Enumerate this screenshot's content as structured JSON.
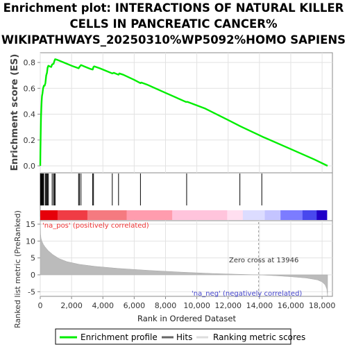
{
  "title_lines": [
    "Enrichment plot: INTERACTIONS OF NATURAL KILLER",
    "CELLS IN PANCREATIC CANCER%",
    "WIKIPATHWAYS_20250310%WP5092%HOMO SAPIENS"
  ],
  "chart_data": [
    {
      "type": "line",
      "panel": "enrichment-profile",
      "ylabel": "Enrichment score (ES)",
      "xlim": [
        0,
        18400
      ],
      "ylim": [
        0,
        0.85
      ],
      "yticks": [
        0.0,
        0.2,
        0.4,
        0.6,
        0.8
      ],
      "ytick_labels": [
        "0.0",
        "0.2",
        "0.4",
        "0.6",
        "0.8"
      ],
      "grid": true,
      "series": [
        {
          "name": "Enrichment profile",
          "color": "#00ee00",
          "points": [
            [
              0,
              0.0
            ],
            [
              10,
              0.1
            ],
            [
              20,
              0.2
            ],
            [
              35,
              0.3
            ],
            [
              50,
              0.38
            ],
            [
              70,
              0.45
            ],
            [
              90,
              0.5
            ],
            [
              110,
              0.54
            ],
            [
              140,
              0.56
            ],
            [
              180,
              0.6
            ],
            [
              230,
              0.62
            ],
            [
              280,
              0.62
            ],
            [
              330,
              0.64
            ],
            [
              380,
              0.7
            ],
            [
              430,
              0.72
            ],
            [
              470,
              0.76
            ],
            [
              520,
              0.775
            ],
            [
              600,
              0.77
            ],
            [
              700,
              0.765
            ],
            [
              760,
              0.785
            ],
            [
              850,
              0.79
            ],
            [
              900,
              0.81
            ],
            [
              950,
              0.825
            ],
            [
              1100,
              0.82
            ],
            [
              1500,
              0.8
            ],
            [
              2000,
              0.775
            ],
            [
              2450,
              0.755
            ],
            [
              2500,
              0.765
            ],
            [
              2600,
              0.78
            ],
            [
              2800,
              0.77
            ],
            [
              3200,
              0.75
            ],
            [
              3350,
              0.745
            ],
            [
              3400,
              0.765
            ],
            [
              3450,
              0.77
            ],
            [
              3800,
              0.755
            ],
            [
              4300,
              0.73
            ],
            [
              4600,
              0.715
            ],
            [
              4700,
              0.72
            ],
            [
              4900,
              0.71
            ],
            [
              5000,
              0.705
            ],
            [
              5050,
              0.715
            ],
            [
              5300,
              0.705
            ],
            [
              6000,
              0.665
            ],
            [
              6400,
              0.64
            ],
            [
              6450,
              0.645
            ],
            [
              6800,
              0.63
            ],
            [
              8000,
              0.565
            ],
            [
              9300,
              0.495
            ],
            [
              9400,
              0.495
            ],
            [
              10500,
              0.445
            ],
            [
              12000,
              0.355
            ],
            [
              12800,
              0.305
            ],
            [
              14200,
              0.225
            ],
            [
              16000,
              0.13
            ],
            [
              17500,
              0.05
            ],
            [
              18350,
              0.0
            ]
          ]
        }
      ]
    },
    {
      "type": "scatter",
      "panel": "hits",
      "series": [
        {
          "name": "Hits",
          "color": "#000000",
          "x": [
            15,
            35,
            50,
            70,
            90,
            110,
            150,
            180,
            230,
            330,
            380,
            430,
            470,
            520,
            760,
            850,
            900,
            950,
            2450,
            2500,
            2600,
            3350,
            3400,
            4600,
            5000,
            6400,
            9350,
            12750,
            14150
          ]
        }
      ]
    },
    {
      "type": "heatmap",
      "panel": "ranking-color-bar",
      "colors": [
        "#e6000a",
        "#f03c45",
        "#f57a80",
        "#ff9cae",
        "#ffc4dc",
        "#ffdff0",
        "#dcdcff",
        "#c4c4ff",
        "#7c7cff",
        "#4848ee",
        "#2000c8"
      ]
    },
    {
      "type": "area",
      "panel": "ranked-list-metric",
      "xlabel": "Rank in Ordered Dataset",
      "ylabel": "Ranked list metric (PreRanked)",
      "xlim": [
        0,
        18400
      ],
      "ylim": [
        -6.8,
        17.5
      ],
      "yticks": [
        -5,
        0,
        5,
        10,
        15
      ],
      "ytick_labels": [
        "-5",
        "0",
        "5",
        "10",
        "15"
      ],
      "xticks": [
        0,
        2000,
        4000,
        6000,
        8000,
        10000,
        12000,
        14000,
        16000,
        18000
      ],
      "xtick_labels": [
        "0",
        "2,000",
        "4,000",
        "6,000",
        "8,000",
        "10,000",
        "12,000",
        "14,000",
        "16,000",
        "18,000"
      ],
      "grid": true,
      "series": [
        {
          "name": "Ranking metric scores",
          "color": "#bbbbbb",
          "points": [
            [
              0,
              17.2
            ],
            [
              20,
              12.0
            ],
            [
              50,
              10.8
            ],
            [
              100,
              10.0
            ],
            [
              200,
              9.0
            ],
            [
              300,
              8.3
            ],
            [
              500,
              7.2
            ],
            [
              800,
              6.0
            ],
            [
              1200,
              4.8
            ],
            [
              1700,
              3.9
            ],
            [
              2500,
              3.1
            ],
            [
              3500,
              2.5
            ],
            [
              5000,
              1.9
            ],
            [
              7000,
              1.3
            ],
            [
              9000,
              0.8
            ],
            [
              11000,
              0.4
            ],
            [
              12500,
              0.18
            ],
            [
              13946,
              0.0
            ],
            [
              15000,
              -0.25
            ],
            [
              16000,
              -0.55
            ],
            [
              17000,
              -0.95
            ],
            [
              17700,
              -1.5
            ],
            [
              18000,
              -2.1
            ],
            [
              18200,
              -3.0
            ],
            [
              18300,
              -4.2
            ],
            [
              18350,
              -6.3
            ]
          ]
        }
      ],
      "annotations": {
        "zero_cross_text": "Zero cross at 13946",
        "zero_cross_x": 13946,
        "pos_label": "'na_pos' (positively correlated)",
        "neg_label": "'na_neg' (negatively correlated)"
      }
    }
  ],
  "legend": [
    {
      "label": "Enrichment profile",
      "color": "#00ee00"
    },
    {
      "label": "Hits",
      "color": "#666666"
    },
    {
      "label": "Ranking metric scores",
      "color": "#dddddd"
    }
  ]
}
